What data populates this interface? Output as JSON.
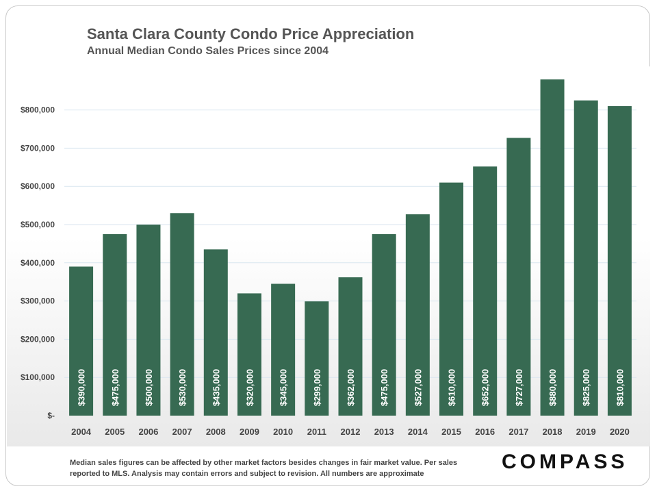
{
  "title": "Santa Clara County Condo Price Appreciation",
  "subtitle": "Annual Median Condo Sales Prices since 2004",
  "footnote": "Median sales figures can be affected by other market factors besides changes in fair market value. Per sales reported to MLS. Analysis may contain errors and subject to revision. All numbers are approximate",
  "logo_text": "COMPASS",
  "colors": {
    "bar": "#376a52",
    "grid": "#d9e6ef"
  },
  "chart_data": {
    "type": "bar",
    "categories": [
      "2004",
      "2005",
      "2006",
      "2007",
      "2008",
      "2009",
      "2010",
      "2011",
      "2012",
      "2013",
      "2014",
      "2015",
      "2016",
      "2017",
      "2018",
      "2019",
      "2020"
    ],
    "values": [
      390000,
      475000,
      500000,
      530000,
      435000,
      320000,
      345000,
      299000,
      362000,
      475000,
      527000,
      610000,
      652000,
      727000,
      880000,
      825000,
      810000
    ],
    "data_labels": [
      "$390,000",
      "$475,000",
      "$500,000",
      "$530,000",
      "$435,000",
      "$320,000",
      "$345,000",
      "$299,000",
      "$362,000",
      "$475,000",
      "$527,000",
      "$610,000",
      "$652,000",
      "$727,000",
      "$880,000",
      "$825,000",
      "$810,000"
    ],
    "yticks": [
      0,
      100000,
      200000,
      300000,
      400000,
      500000,
      600000,
      700000,
      800000
    ],
    "ytick_labels": [
      "$-",
      "$100,000",
      "$200,000",
      "$300,000",
      "$400,000",
      "$500,000",
      "$600,000",
      "$700,000",
      "$800,000"
    ],
    "ylim": [
      0,
      880000
    ],
    "xlabel": "",
    "ylabel": "",
    "grid": true,
    "legend": "none"
  }
}
